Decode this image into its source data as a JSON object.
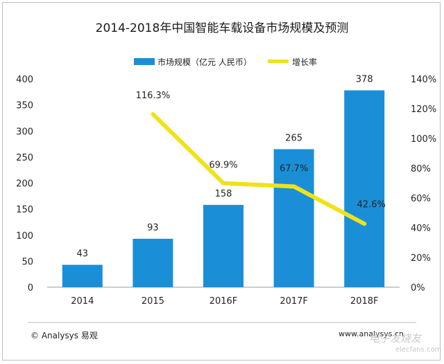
{
  "chart_data": {
    "type": "bar",
    "title": "2014-2018年中国智能车载设备市场规模及预测",
    "categories": [
      "2014",
      "2015",
      "2016F",
      "2017F",
      "2018F"
    ],
    "series": [
      {
        "name": "市场规模（亿元 人民币）",
        "type": "bar",
        "axis": "left",
        "color": "#1a8fd8",
        "values": [
          43,
          93,
          158,
          265,
          378
        ],
        "labels": [
          "43",
          "93",
          "158",
          "265",
          "378"
        ]
      },
      {
        "name": "增长率",
        "type": "line",
        "axis": "right",
        "color": "#f0e21a",
        "values": [
          null,
          116.3,
          69.9,
          67.7,
          42.6
        ],
        "labels": [
          "",
          "116.3%",
          "69.9%",
          "67.7%",
          "42.6%"
        ]
      }
    ],
    "y_left": {
      "ylim": [
        0,
        400
      ],
      "ticks": [
        "0",
        "50",
        "100",
        "150",
        "200",
        "250",
        "300",
        "350",
        "400"
      ]
    },
    "y_right": {
      "ylim": [
        0,
        140
      ],
      "ticks": [
        "0%",
        "20%",
        "40%",
        "60%",
        "80%",
        "100%",
        "120%",
        "140%"
      ]
    },
    "legend_position": "top-center",
    "grid": false
  },
  "footer": {
    "source": "© Analysys 易观",
    "url": "www.analysys.cn"
  },
  "watermark": {
    "brand": "电子发烧友",
    "site": "elecfans.com"
  }
}
